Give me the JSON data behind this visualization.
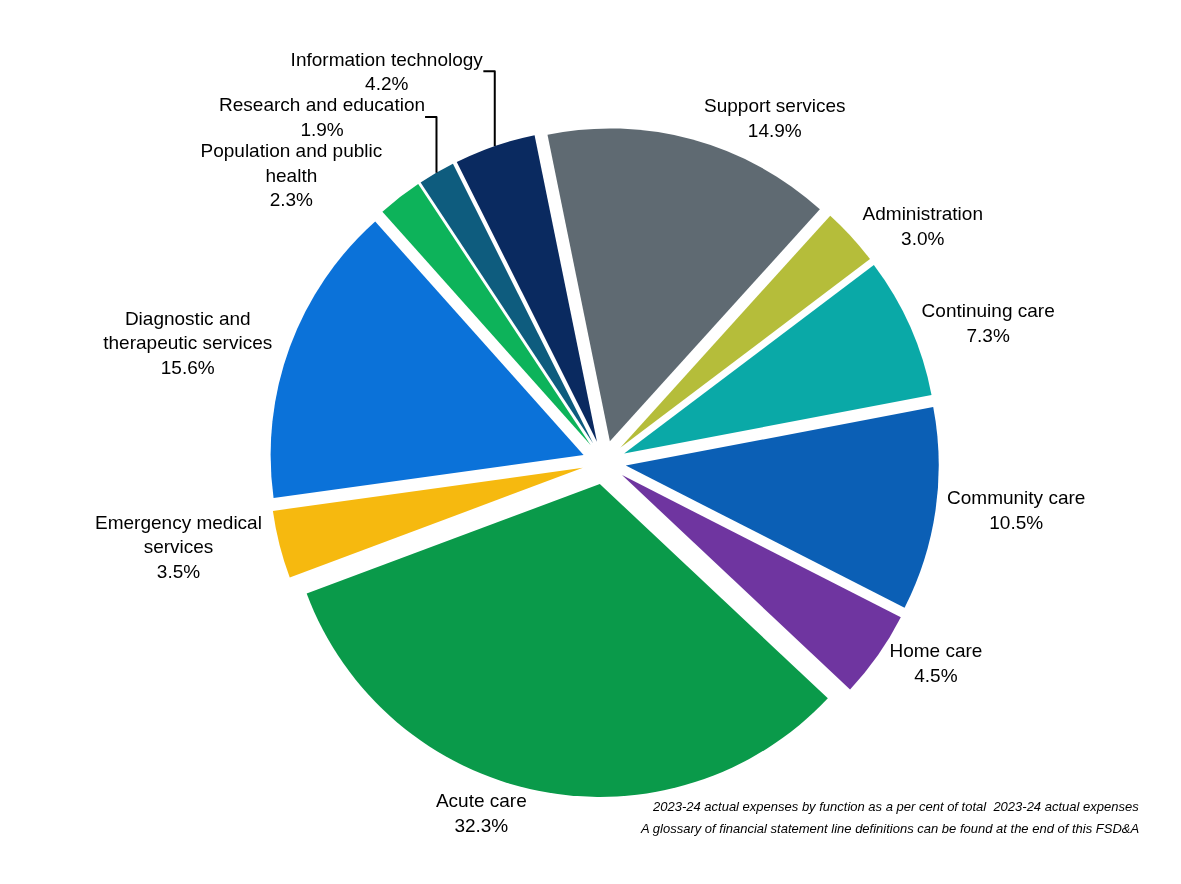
{
  "chart_data": {
    "type": "pie",
    "categories": [
      "Support services",
      "Administration",
      "Continuing care",
      "Community care",
      "Home care",
      "Acute care",
      "Emergency medical services",
      "Diagnostic and therapeutic services",
      "Population and public health",
      "Research and education",
      "Information technology"
    ],
    "values": [
      14.9,
      3.0,
      7.3,
      10.5,
      4.5,
      32.3,
      3.5,
      15.6,
      2.3,
      1.9,
      4.2
    ],
    "colors": [
      "#5f6a72",
      "#b5bd3a",
      "#0aa9a7",
      "#0b5fb5",
      "#6f35a0",
      "#0a9a4a",
      "#f6b90f",
      "#0b72d9",
      "#0db35a",
      "#0e5c7e",
      "#0a2a60"
    ],
    "value_labels": [
      "14.9%",
      "3.0%",
      "7.3%",
      "10.5%",
      "4.5%",
      "32.3%",
      "3.5%",
      "15.6%",
      "2.3%",
      "1.9%",
      "4.2%"
    ],
    "legend": false,
    "annotations": [
      "2023-24 actual expenses by function as a per cent of total  2023-24 actual expenses",
      "A glossary of financial statement line definitions can be found at the end of this FSD&A"
    ]
  }
}
